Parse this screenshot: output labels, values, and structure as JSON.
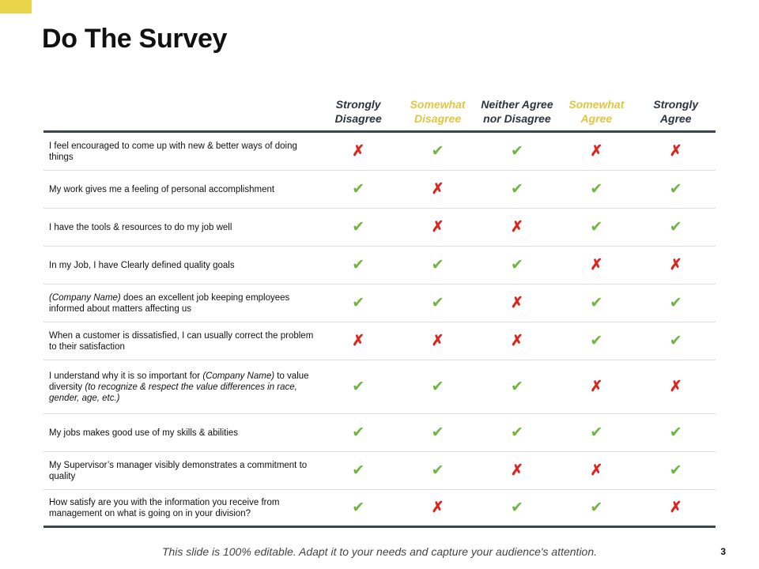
{
  "title": "Do The Survey",
  "columns": [
    "Strongly Disagree",
    "Somewhat Disagree",
    "Neither Agree nor Disagree",
    "Somewhat Agree",
    "Strongly Agree"
  ],
  "columns_lines": [
    [
      "Strongly",
      "Disagree"
    ],
    [
      "Somewhat",
      "Disagree"
    ],
    [
      "Neither Agree",
      "nor Disagree"
    ],
    [
      "Somewhat",
      "Agree"
    ],
    [
      "Strongly",
      "Agree"
    ]
  ],
  "column_colors": [
    "#2b3440",
    "#e2c541",
    "#2b3440",
    "#e2c541",
    "#2b3440"
  ],
  "icons": {
    "yes": "checkmark-icon",
    "no": "cross-icon",
    "yes_glyph": "✔",
    "no_glyph": "✗"
  },
  "rows": [
    {
      "segments": [
        {
          "text": "I feel encouraged to come up with new & better ways of doing things",
          "italic": false
        }
      ],
      "marks": [
        "no",
        "yes",
        "yes",
        "no",
        "no"
      ]
    },
    {
      "segments": [
        {
          "text": "My work gives me a feeling of personal accomplishment",
          "italic": false
        }
      ],
      "marks": [
        "yes",
        "no",
        "yes",
        "yes",
        "yes"
      ]
    },
    {
      "segments": [
        {
          "text": "I have the tools & resources to do my job well",
          "italic": false
        }
      ],
      "marks": [
        "yes",
        "no",
        "no",
        "yes",
        "yes"
      ]
    },
    {
      "segments": [
        {
          "text": "In my Job, I have Clearly defined quality goals",
          "italic": false
        }
      ],
      "marks": [
        "yes",
        "yes",
        "yes",
        "no",
        "no"
      ]
    },
    {
      "segments": [
        {
          "text": "(Company Name)",
          "italic": true
        },
        {
          "text": " does an excellent job keeping employees informed about matters affecting us",
          "italic": false
        }
      ],
      "marks": [
        "yes",
        "yes",
        "no",
        "yes",
        "yes"
      ]
    },
    {
      "segments": [
        {
          "text": "When a customer is dissatisfied, I can usually correct the problem to their satisfaction",
          "italic": false
        }
      ],
      "marks": [
        "no",
        "no",
        "no",
        "yes",
        "yes"
      ]
    },
    {
      "segments": [
        {
          "text": "I understand why it is so important for ",
          "italic": false
        },
        {
          "text": "(Company Name)",
          "italic": true
        },
        {
          "text": " to value diversity ",
          "italic": false
        },
        {
          "text": "(to recognize & respect the value differences in race, gender, age, etc.)",
          "italic": true
        }
      ],
      "marks": [
        "yes",
        "yes",
        "yes",
        "no",
        "no"
      ]
    },
    {
      "segments": [
        {
          "text": "My jobs makes good use of my skills & abilities",
          "italic": false
        }
      ],
      "marks": [
        "yes",
        "yes",
        "yes",
        "yes",
        "yes"
      ]
    },
    {
      "segments": [
        {
          "text": "My Supervisor’s manager visibly demonstrates a commitment to quality",
          "italic": false
        }
      ],
      "marks": [
        "yes",
        "yes",
        "no",
        "no",
        "yes"
      ]
    },
    {
      "segments": [
        {
          "text": "How satisfy are you with the information you receive from management on what is going on in your division?",
          "italic": false
        }
      ],
      "marks": [
        "yes",
        "no",
        "yes",
        "yes",
        "no"
      ]
    }
  ],
  "footer": "This slide is 100% editable. Adapt it to your needs and capture your audience's attention.",
  "page_number": "3"
}
